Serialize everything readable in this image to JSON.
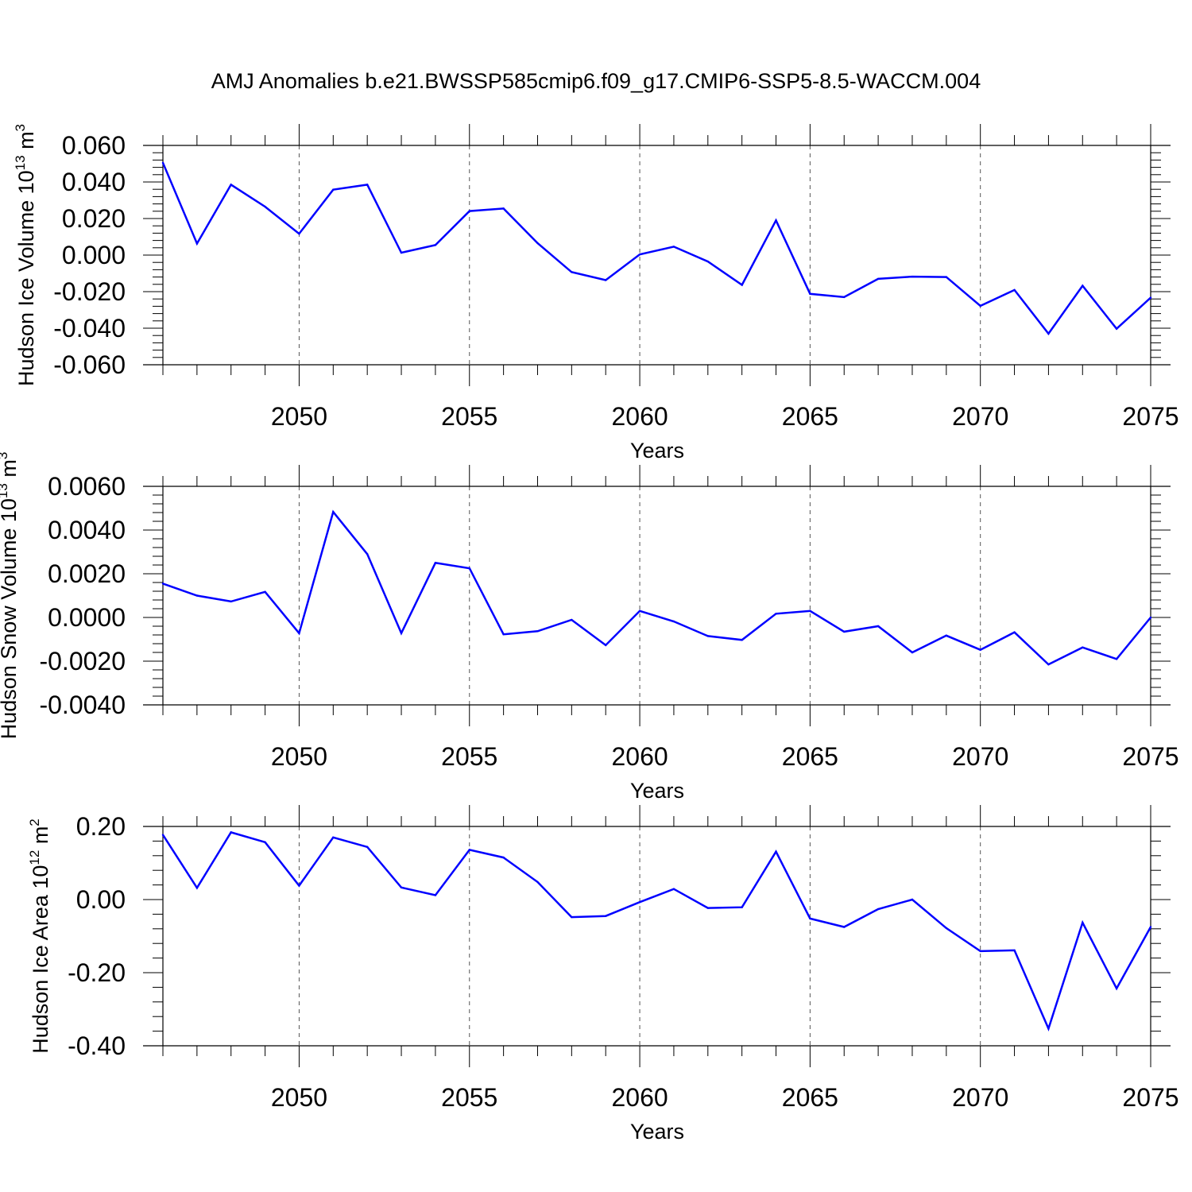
{
  "title": "AMJ Anomalies b.e21.BWSSP585cmip6.f09_g17.CMIP6-SSP5-8.5-WACCM.004",
  "colors": {
    "series": "#0000ff",
    "axis": "#000000",
    "grid": "#555555"
  },
  "chart_data": [
    {
      "type": "line",
      "ylabel_main": "Hudson Ice Volume 10",
      "ylabel_exp": "13",
      "ylabel_unit": "m",
      "ylabel_unit_exp": "3",
      "xlabel": "Years",
      "xlim": [
        2046,
        2075
      ],
      "ylim": [
        -0.06,
        0.06
      ],
      "ytick_values": [
        -0.06,
        -0.04,
        -0.02,
        0.0,
        0.02,
        0.04,
        0.06
      ],
      "ytick_labels": [
        "-0.060",
        "-0.040",
        "-0.020",
        "0.000",
        "0.020",
        "0.040",
        "0.060"
      ],
      "xtick_values": [
        2050,
        2055,
        2060,
        2065,
        2070,
        2075
      ],
      "xtick_labels": [
        "2050",
        "2055",
        "2060",
        "2065",
        "2070",
        "2075"
      ],
      "x": [
        2046,
        2047,
        2048,
        2049,
        2050,
        2051,
        2052,
        2053,
        2054,
        2055,
        2056,
        2057,
        2058,
        2059,
        2060,
        2061,
        2062,
        2063,
        2064,
        2065,
        2066,
        2067,
        2068,
        2069,
        2070,
        2071,
        2072,
        2073,
        2074,
        2075
      ],
      "values": [
        0.0505,
        0.0063,
        0.0385,
        0.0265,
        0.0117,
        0.0358,
        0.0385,
        0.0013,
        0.0055,
        0.0241,
        0.0255,
        0.0065,
        -0.0093,
        -0.0137,
        0.0004,
        0.0046,
        -0.0035,
        -0.0163,
        0.019,
        -0.0212,
        -0.023,
        -0.013,
        -0.0118,
        -0.012,
        -0.0278,
        -0.0191,
        -0.043,
        -0.0168,
        -0.0403,
        -0.0233
      ]
    },
    {
      "type": "line",
      "ylabel_main": "Hudson Snow Volume 10",
      "ylabel_exp": "13",
      "ylabel_unit": "m",
      "ylabel_unit_exp": "3",
      "xlabel": "Years",
      "xlim": [
        2046,
        2075
      ],
      "ylim": [
        -0.004,
        0.006
      ],
      "ytick_values": [
        -0.004,
        -0.002,
        0.0,
        0.002,
        0.004,
        0.006
      ],
      "ytick_labels": [
        "-0.0040",
        "-0.0020",
        "0.0000",
        "0.0020",
        "0.0040",
        "0.0060"
      ],
      "xtick_values": [
        2050,
        2055,
        2060,
        2065,
        2070,
        2075
      ],
      "xtick_labels": [
        "2050",
        "2055",
        "2060",
        "2065",
        "2070",
        "2075"
      ],
      "x": [
        2046,
        2047,
        2048,
        2049,
        2050,
        2051,
        2052,
        2053,
        2054,
        2055,
        2056,
        2057,
        2058,
        2059,
        2060,
        2061,
        2062,
        2063,
        2064,
        2065,
        2066,
        2067,
        2068,
        2069,
        2070,
        2071,
        2072,
        2073,
        2074,
        2075
      ],
      "values": [
        0.00155,
        0.001,
        0.00073,
        0.00117,
        -0.00072,
        0.00483,
        0.0029,
        -0.00072,
        0.0025,
        0.00225,
        -0.00077,
        -0.00063,
        -0.00011,
        -0.00127,
        0.0003,
        -0.00018,
        -0.00085,
        -0.00103,
        0.00017,
        0.0003,
        -0.00065,
        -0.0004,
        -0.0016,
        -0.00083,
        -0.00148,
        -0.00068,
        -0.00215,
        -0.00137,
        -0.0019,
        0.0
      ]
    },
    {
      "type": "line",
      "ylabel_main": "Hudson Ice Area 10",
      "ylabel_exp": "12",
      "ylabel_unit": "m",
      "ylabel_unit_exp": "2",
      "xlabel": "Years",
      "xlim": [
        2046,
        2075
      ],
      "ylim": [
        -0.4,
        0.2
      ],
      "ytick_values": [
        -0.4,
        -0.2,
        0.0,
        0.2
      ],
      "ytick_labels": [
        "-0.40",
        "-0.20",
        "0.00",
        "0.20"
      ],
      "xtick_values": [
        2050,
        2055,
        2060,
        2065,
        2070,
        2075
      ],
      "xtick_labels": [
        "2050",
        "2055",
        "2060",
        "2065",
        "2070",
        "2075"
      ],
      "x": [
        2046,
        2047,
        2048,
        2049,
        2050,
        2051,
        2052,
        2053,
        2054,
        2055,
        2056,
        2057,
        2058,
        2059,
        2060,
        2061,
        2062,
        2063,
        2064,
        2065,
        2066,
        2067,
        2068,
        2069,
        2070,
        2071,
        2072,
        2073,
        2074,
        2075
      ],
      "values": [
        0.177,
        0.032,
        0.184,
        0.157,
        0.038,
        0.17,
        0.144,
        0.033,
        0.012,
        0.136,
        0.115,
        0.048,
        -0.048,
        -0.045,
        -0.007,
        0.029,
        -0.023,
        -0.021,
        0.131,
        -0.052,
        -0.075,
        -0.026,
        0.0,
        -0.078,
        -0.141,
        -0.139,
        -0.353,
        -0.063,
        -0.243,
        -0.075
      ]
    }
  ]
}
